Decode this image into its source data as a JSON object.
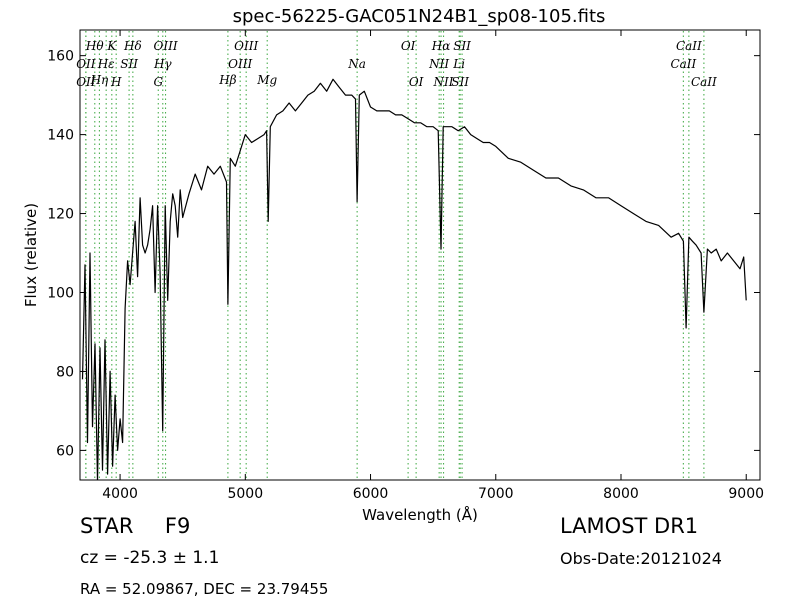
{
  "chart_data": {
    "type": "line",
    "title": "spec-56225-GAC051N24B1_sp08-105.fits",
    "xlabel": "Wavelength (Å)",
    "ylabel": "Flux (relative)",
    "xlim": [
      3680,
      9110
    ],
    "ylim": [
      52.5,
      166.5
    ],
    "xticks": [
      4000,
      5000,
      6000,
      7000,
      8000,
      9000
    ],
    "yticks": [
      60,
      80,
      100,
      120,
      140,
      160
    ],
    "grid": false,
    "line_color": "#000000",
    "marker_color": "#4caf50",
    "series": [
      {
        "values_note_free": true,
        "x": [
          3700,
          3720,
          3740,
          3760,
          3780,
          3800,
          3820,
          3840,
          3860,
          3880,
          3900,
          3920,
          3940,
          3960,
          3980,
          4000,
          4020,
          4040,
          4060,
          4080,
          4100,
          4120,
          4140,
          4160,
          4180,
          4200,
          4220,
          4240,
          4260,
          4280,
          4300,
          4320,
          4340,
          4360,
          4380,
          4400,
          4420,
          4440,
          4460,
          4480,
          4500,
          4550,
          4600,
          4650,
          4700,
          4750,
          4800,
          4850,
          4861,
          4880,
          4920,
          4960,
          5000,
          5050,
          5100,
          5150,
          5170,
          5183,
          5200,
          5250,
          5300,
          5350,
          5400,
          5450,
          5500,
          5550,
          5600,
          5650,
          5700,
          5750,
          5800,
          5850,
          5880,
          5893,
          5910,
          5950,
          6000,
          6050,
          6100,
          6150,
          6200,
          6250,
          6300,
          6350,
          6400,
          6450,
          6500,
          6540,
          6563,
          6580,
          6620,
          6650,
          6700,
          6750,
          6800,
          6850,
          6900,
          6950,
          7000,
          7100,
          7200,
          7300,
          7400,
          7500,
          7600,
          7700,
          7800,
          7900,
          8000,
          8100,
          8200,
          8300,
          8400,
          8460,
          8498,
          8520,
          8542,
          8570,
          8600,
          8640,
          8662,
          8690,
          8720,
          8760,
          8800,
          8850,
          8900,
          8950,
          8980,
          9000
        ],
        "y": [
          78,
          107,
          62,
          110,
          66,
          87,
          52,
          86,
          55,
          88,
          54,
          80,
          56,
          74,
          60,
          68,
          62,
          96,
          108,
          102,
          110,
          118,
          104,
          124,
          112,
          110,
          112,
          116,
          122,
          100,
          122,
          105,
          65,
          122,
          98,
          118,
          125,
          122,
          114,
          126,
          119,
          125,
          130,
          126,
          132,
          130,
          132,
          128,
          97,
          134,
          132,
          136,
          140,
          138,
          139,
          140,
          141,
          118,
          142,
          145,
          146,
          148,
          146,
          148,
          150,
          151,
          153,
          151,
          154,
          152,
          150,
          150,
          149,
          123,
          150,
          151,
          147,
          146,
          146,
          146,
          145,
          145,
          144,
          143,
          143,
          142,
          142,
          141,
          111,
          142,
          142,
          142,
          141,
          142,
          140,
          139,
          138,
          138,
          137,
          134,
          133,
          131,
          129,
          129,
          127,
          126,
          124,
          124,
          122,
          120,
          118,
          117,
          114,
          115,
          113,
          91,
          114,
          113,
          112,
          110,
          95,
          111,
          110,
          111,
          108,
          110,
          108,
          106,
          109,
          98
        ]
      }
    ],
    "annotations": [
      {
        "label": "OII",
        "x": 3727,
        "row": 3
      },
      {
        "label": "OII",
        "x": 3727,
        "row": 1
      },
      {
        "label": "Hθ",
        "x": 3798,
        "row": 0
      },
      {
        "label": "Hη",
        "x": 3835,
        "row": 2
      },
      {
        "label": "Hε",
        "x": 3889,
        "row": 1
      },
      {
        "label": "K",
        "x": 3934,
        "row": 0
      },
      {
        "label": "SII",
        "x": 4072,
        "row": 1
      },
      {
        "label": "H",
        "x": 3969,
        "row": 3
      },
      {
        "label": "Hδ",
        "x": 4102,
        "row": 0
      },
      {
        "label": "OIII",
        "x": 4363,
        "row": 0
      },
      {
        "label": "Hγ",
        "x": 4341,
        "row": 1
      },
      {
        "label": "G",
        "x": 4305,
        "row": 3
      },
      {
        "label": "OIII",
        "x": 5007,
        "row": 0
      },
      {
        "label": "OIII",
        "x": 4959,
        "row": 1
      },
      {
        "label": "Hβ",
        "x": 4861,
        "row": 2
      },
      {
        "label": "Mg",
        "x": 5175,
        "row": 2
      },
      {
        "label": "Na",
        "x": 5893,
        "row": 1
      },
      {
        "label": "OI",
        "x": 6300,
        "row": 0
      },
      {
        "label": "OI",
        "x": 6364,
        "row": 3
      },
      {
        "label": "Hα",
        "x": 6563,
        "row": 0
      },
      {
        "label": "SII",
        "x": 6731,
        "row": 0
      },
      {
        "label": "NII",
        "x": 6548,
        "row": 1
      },
      {
        "label": "Li",
        "x": 6708,
        "row": 1
      },
      {
        "label": "NII",
        "x": 6583,
        "row": 3
      },
      {
        "label": "SII",
        "x": 6716,
        "row": 3
      },
      {
        "label": "CaII",
        "x": 8498,
        "row": 1
      },
      {
        "label": "CaII",
        "x": 8542,
        "row": 0
      },
      {
        "label": "CaII",
        "x": 8662,
        "row": 3
      }
    ]
  },
  "info": {
    "object_type": "STAR",
    "subclass": "F9",
    "cz_text": "cz = -25.3 ± 1.1",
    "radec_text": "RA = 52.09867, DEC = 23.79455",
    "survey": "LAMOST DR1",
    "obs_date": "Obs-Date:20121024"
  }
}
